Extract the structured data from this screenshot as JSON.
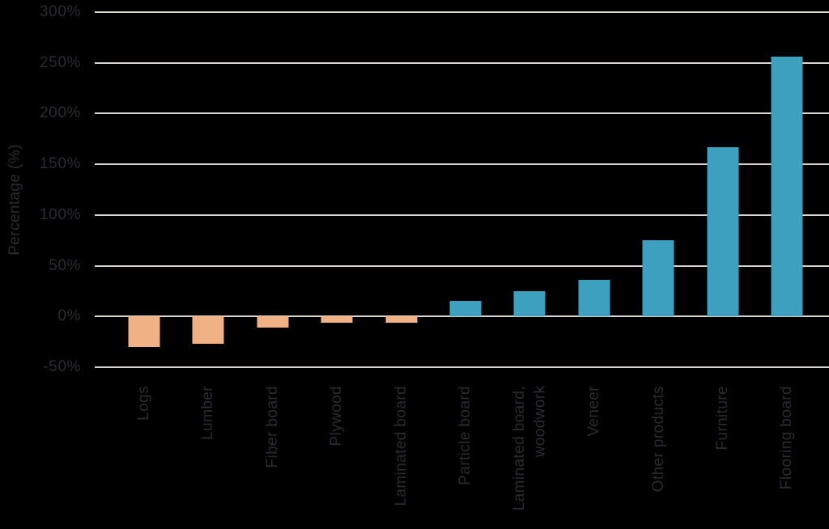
{
  "chart_data": {
    "type": "bar",
    "title": "",
    "xlabel": "",
    "ylabel": "Percentage (%)",
    "ylim": [
      -50,
      300
    ],
    "ytick_step": 50,
    "yticks": [
      "300%",
      "250%",
      "200%",
      "150%",
      "100%",
      "50%",
      "0%",
      "-50%"
    ],
    "grid": true,
    "legend": false,
    "categories": [
      "Logs",
      "Lumber",
      "Fiber board",
      "Plywood",
      "Laminated board",
      "Particle board",
      "Laminated board,\nwoodwork",
      "Veneer",
      "Other products",
      "Furniture",
      "Flooring board"
    ],
    "values": [
      -30,
      -27,
      -11,
      -6,
      -6,
      15,
      25,
      36,
      75,
      167,
      256
    ],
    "colors": {
      "positive_bar": "#3da0be",
      "negative_bar": "#f0b184",
      "gridline": "#d8d5d1",
      "text": "#2b2a30",
      "background": "#000000"
    }
  }
}
